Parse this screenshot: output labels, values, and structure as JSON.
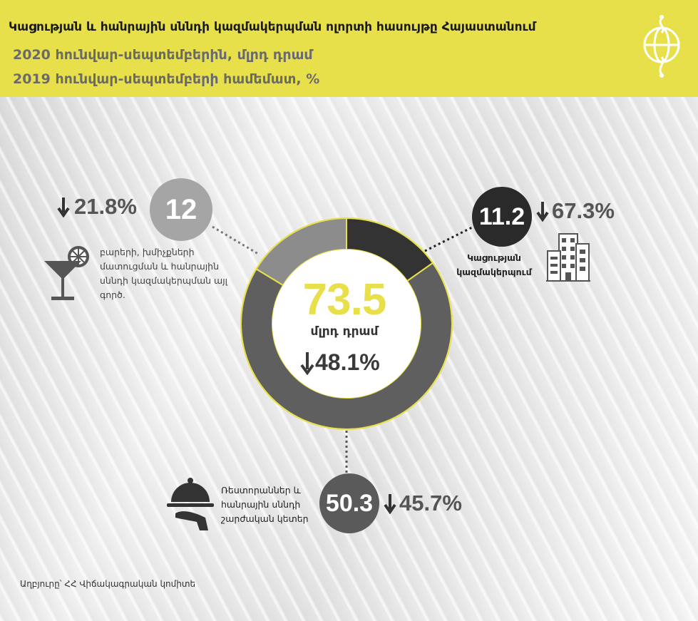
{
  "header": {
    "title": "Կացության և հանրային սննդի կազմակերպման ոլորտի հասույթը Հայաստանում",
    "subtitle_line1": "2020 հունվար-սեպտեմբերին, մլրդ դրամ",
    "subtitle_line2": "2019 հունվար-սեպտեմբերի համեմատ, %"
  },
  "colors": {
    "accent_yellow": "#e7e04a",
    "segment_accommodation": "#333333",
    "segment_restaurants": "#5f5f5f",
    "segment_bars": "#8c8c8c",
    "bubble_bars": "#a5a5a5"
  },
  "chart_data": {
    "type": "pie",
    "donut": true,
    "total": {
      "value": 73.5,
      "value_label": "73.5",
      "unit": "մլրդ դրամ",
      "change_pct": -48.1,
      "change_label": "48.1%"
    },
    "segments": [
      {
        "id": "accommodation",
        "name": "Կացության կազմակերպում",
        "name_line1": "Կացության",
        "name_line2": "կազմակերպում",
        "value": 11.2,
        "value_label": "11.2",
        "change_pct": -67.3,
        "change_label": "67.3%",
        "icon": "building-icon"
      },
      {
        "id": "restaurants",
        "name": "Ռեստորաններ և հանրային սննդի շարժական կետեր",
        "name_line1": "Ռեստորաններ և",
        "name_line2": "հանրային սննդի",
        "name_line3": "շարժական կետեր",
        "value": 50.3,
        "value_label": "50.3",
        "change_pct": -45.7,
        "change_label": "45.7%",
        "icon": "cloche-serving-icon"
      },
      {
        "id": "bars",
        "name": "բարերի, խմիչքների մատուցման և հանրային սննդի կազմակերպման այլ գործ.",
        "name_line1": "բարերի, խմիչքների",
        "name_line2": "մատուցման և հանրային",
        "name_line3": "սննդի կազմակերպման այլ",
        "name_line4": "գործ.",
        "value": 12,
        "value_label": "12",
        "change_pct": -21.8,
        "change_label": "21.8%",
        "icon": "cocktail-glass-icon"
      }
    ]
  },
  "source": "Աղբյուրը՝ ՀՀ Վիճակագրական կոմիտե"
}
